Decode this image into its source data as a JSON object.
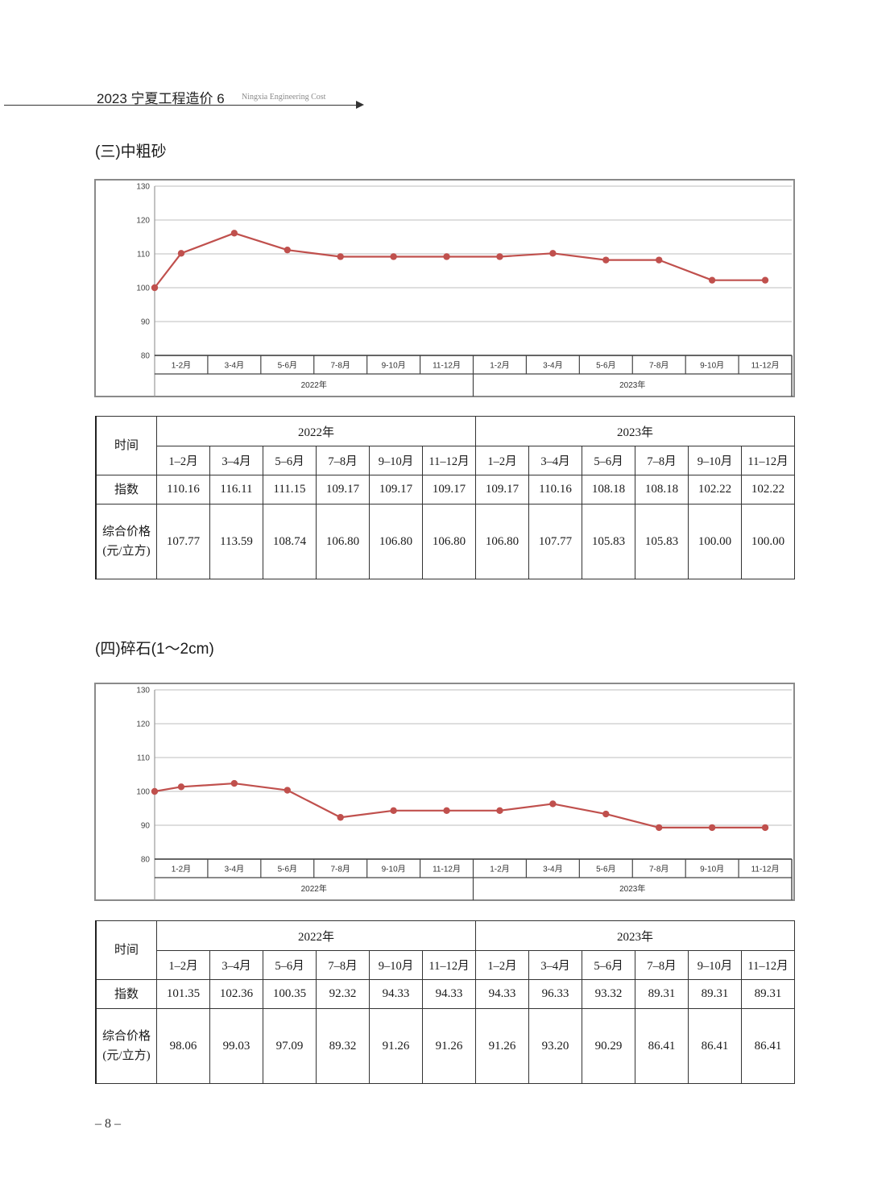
{
  "header": {
    "title": "2023 宁夏工程造价 6",
    "subtitle": "Ningxia Engineering Cost"
  },
  "sections": [
    {
      "title": "(三)中粗砂",
      "table": {
        "time_label": "时间",
        "years": [
          "2022年",
          "2023年"
        ],
        "months": [
          "1–2月",
          "3–4月",
          "5–6月",
          "7–8月",
          "9–10月",
          "11–12月",
          "1–2月",
          "3–4月",
          "5–6月",
          "7–8月",
          "9–10月",
          "11–12月"
        ],
        "index_label": "指数",
        "index_values": [
          "110.16",
          "116.11",
          "111.15",
          "109.17",
          "109.17",
          "109.17",
          "109.17",
          "110.16",
          "108.18",
          "108.18",
          "102.22",
          "102.22"
        ],
        "price_label_line1": "综合价格",
        "price_label_line2": "(元/立方)",
        "price_values": [
          "107.77",
          "113.59",
          "108.74",
          "106.80",
          "106.80",
          "106.80",
          "106.80",
          "107.77",
          "105.83",
          "105.83",
          "100.00",
          "100.00"
        ]
      }
    },
    {
      "title": "(四)碎石(1～2cm)",
      "table": {
        "time_label": "时间",
        "years": [
          "2022年",
          "2023年"
        ],
        "months": [
          "1–2月",
          "3–4月",
          "5–6月",
          "7–8月",
          "9–10月",
          "11–12月",
          "1–2月",
          "3–4月",
          "5–6月",
          "7–8月",
          "9–10月",
          "11–12月"
        ],
        "index_label": "指数",
        "index_values": [
          "101.35",
          "102.36",
          "100.35",
          "92.32",
          "94.33",
          "94.33",
          "94.33",
          "96.33",
          "93.32",
          "89.31",
          "89.31",
          "89.31"
        ],
        "price_label_line1": "综合价格",
        "price_label_line2": "(元/立方)",
        "price_values": [
          "98.06",
          "99.03",
          "97.09",
          "89.32",
          "91.26",
          "91.26",
          "91.26",
          "93.20",
          "90.29",
          "86.41",
          "86.41",
          "86.41"
        ]
      }
    }
  ],
  "chart_data": [
    {
      "type": "line",
      "categories": [
        "1-2月",
        "3-4月",
        "5-6月",
        "7-8月",
        "9-10月",
        "11-12月",
        "1-2月",
        "3-4月",
        "5-6月",
        "7-8月",
        "9-10月",
        "11-12月"
      ],
      "groups": [
        "2022年",
        "2023年"
      ],
      "base_value": 100,
      "values": [
        110.16,
        116.11,
        111.15,
        109.17,
        109.17,
        109.17,
        109.17,
        110.16,
        108.18,
        108.18,
        102.22,
        102.22
      ],
      "yticks": [
        80,
        90,
        100,
        110,
        120,
        130
      ],
      "ylim": [
        80,
        130
      ],
      "grid": true,
      "line_color": "#c0504d"
    },
    {
      "type": "line",
      "categories": [
        "1-2月",
        "3-4月",
        "5-6月",
        "7-8月",
        "9-10月",
        "11-12月",
        "1-2月",
        "3-4月",
        "5-6月",
        "7-8月",
        "9-10月",
        "11-12月"
      ],
      "groups": [
        "2022年",
        "2023年"
      ],
      "base_value": 100,
      "values": [
        101.35,
        102.36,
        100.35,
        92.32,
        94.33,
        94.33,
        94.33,
        96.33,
        93.32,
        89.31,
        89.31,
        89.31
      ],
      "yticks": [
        80,
        90,
        100,
        110,
        120,
        130
      ],
      "ylim": [
        80,
        130
      ],
      "grid": true,
      "line_color": "#c0504d"
    }
  ],
  "footer": {
    "page_number": "– 8 –"
  }
}
